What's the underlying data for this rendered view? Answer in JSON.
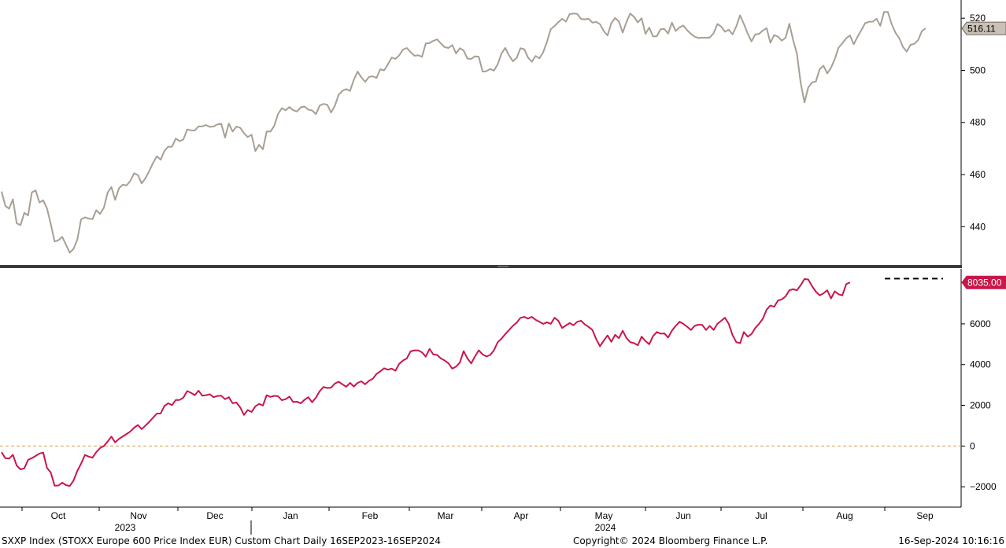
{
  "chart_data": [
    {
      "type": "line",
      "panel": "top",
      "series": [
        {
          "color": "#a89f94",
          "values": [
            453.5,
            448,
            446.9,
            450.5,
            441.3,
            440.6,
            445.3,
            444.3,
            453.2,
            453.9,
            449.3,
            450.1,
            447,
            441,
            434.3,
            434.8,
            436.1,
            433.1,
            430,
            431.5,
            435,
            442.8,
            443.6,
            443.1,
            442.9,
            446.3,
            444.9,
            447.2,
            453,
            455.2,
            450.3,
            454.8,
            456.1,
            455.8,
            457.6,
            460.5,
            459.8,
            456.6,
            458.6,
            461.4,
            464.5,
            467,
            465.7,
            469.1,
            470.7,
            470.7,
            473.8,
            472.8,
            473.5,
            477.3,
            477,
            476.9,
            478.5,
            478.5,
            479,
            478.3,
            478.5,
            479.3,
            479.5,
            474.2,
            479.6,
            476.5,
            478.4,
            478,
            475.9,
            474.4,
            475.3,
            469,
            471.4,
            469.7,
            476.5,
            476.5,
            478.7,
            483.2,
            485.5,
            484.7,
            485.9,
            484.7,
            484.2,
            485.8,
            486.1,
            484.9,
            484.6,
            483.2,
            486.5,
            487.1,
            486.8,
            483.8,
            486.4,
            490.6,
            492.1,
            492.8,
            492.1,
            496.4,
            499.5,
            497.3,
            495.6,
            497.5,
            497.7,
            497.1,
            500.4,
            500,
            502.3,
            504.9,
            504.4,
            505.8,
            508,
            508.6,
            507,
            505.6,
            505.8,
            505.2,
            510.3,
            510.5,
            511.3,
            511.9,
            510.3,
            508.9,
            508.6,
            509.7,
            506.5,
            508.5,
            507.6,
            504.5,
            504.4,
            505.4,
            505.2,
            499.5,
            499.7,
            500.5,
            499.9,
            502.3,
            506.5,
            508.6,
            505.7,
            503.5,
            504.8,
            508.5,
            508.1,
            504.9,
            503.3,
            505.5,
            504.6,
            506.9,
            511,
            515.8,
            517,
            518.5,
            519.8,
            518.7,
            521.6,
            521.8,
            521.7,
            519.7,
            519.6,
            519.8,
            518.3,
            518.6,
            517.7,
            515.1,
            513.4,
            518.1,
            520.1,
            518.7,
            514.5,
            518.6,
            521.8,
            520.5,
            518.4,
            520,
            514,
            516.4,
            513,
            513.1,
            515.8,
            515.9,
            514.1,
            518.3,
            515.1,
            516.5,
            517.2,
            515.4,
            514,
            512.9,
            512.4,
            512.5,
            512.5,
            512.6,
            514.3,
            517.8,
            516.8,
            514.8,
            515.6,
            513.8,
            516.9,
            521.1,
            517.8,
            514.1,
            511.1,
            513.8,
            514,
            515.3,
            516.2,
            510.6,
            513.5,
            512.9,
            511.4,
            512.5,
            517.9,
            511.6,
            506.4,
            495.1,
            487.7,
            493.4,
            495.4,
            495.7,
            500.4,
            501.8,
            498.8,
            501,
            504.3,
            508.7,
            510.4,
            512.3,
            513.4,
            510,
            512.9,
            515.4,
            518.1,
            518.6,
            518.7,
            519.8,
            517.1,
            522.4,
            522.4,
            517.8,
            514.5,
            512.4,
            509,
            507.2,
            509.8,
            510.2,
            511.6,
            515.1,
            516.1
          ]
        }
      ],
      "ylim": [
        425,
        527
      ],
      "yticks": [
        "440",
        "460",
        "480",
        "500",
        "520"
      ],
      "ytick_values": [
        440,
        460,
        480,
        500,
        520
      ],
      "last_value_label": "516.11",
      "last_value": 516.11,
      "label_bg": "#c9c1b6",
      "grid": false
    },
    {
      "type": "line",
      "panel": "bottom",
      "series": [
        {
          "color": "#c8174a",
          "values": [
            -304,
            -600,
            -615,
            -427,
            -961,
            -1146,
            -1095,
            -680,
            -596,
            -485,
            -366,
            -324,
            -1072,
            -1300,
            -1950,
            -1940,
            -1800,
            -1918,
            -1961,
            -1700,
            -1224,
            -869,
            -437,
            -520,
            -570,
            -300,
            -99,
            0,
            216,
            463,
            179,
            350,
            470,
            592,
            716,
            900,
            1030,
            830,
            1004,
            1187,
            1395,
            1595,
            1600,
            1970,
            2100,
            2010,
            2260,
            2263,
            2380,
            2700,
            2614,
            2500,
            2720,
            2470,
            2500,
            2541,
            2400,
            2460,
            2470,
            2300,
            2400,
            2100,
            2140,
            1900,
            1530,
            1770,
            1673,
            1950,
            2070,
            1990,
            2500,
            2415,
            2465,
            2450,
            2250,
            2300,
            2430,
            2160,
            2180,
            2100,
            2270,
            2400,
            2150,
            2380,
            2700,
            2900,
            2850,
            2870,
            3070,
            3158,
            3030,
            2910,
            3100,
            2925,
            3100,
            3180,
            3030,
            3200,
            3300,
            3540,
            3670,
            3820,
            3750,
            3800,
            3700,
            4040,
            4200,
            4300,
            4650,
            4700,
            4700,
            4600,
            4390,
            4770,
            4500,
            4470,
            4300,
            4200,
            4060,
            3800,
            3900,
            4100,
            4660,
            4300,
            4060,
            4400,
            4700,
            4500,
            4400,
            4470,
            4700,
            5100,
            5270,
            5500,
            5700,
            5900,
            6060,
            6300,
            6340,
            6260,
            6340,
            6200,
            6100,
            6000,
            6080,
            6000,
            6300,
            6150,
            5800,
            5920,
            6040,
            5930,
            6100,
            6150,
            5970,
            5850,
            5700,
            5250,
            4900,
            5180,
            5430,
            5120,
            5460,
            5300,
            5660,
            5300,
            5100,
            5050,
            4950,
            5370,
            5150,
            5000,
            5400,
            5600,
            5520,
            5530,
            5330,
            5670,
            5900,
            6100,
            6000,
            5860,
            5700,
            5900,
            5960,
            5950,
            5700,
            5900,
            5700,
            6000,
            6150,
            6300,
            6000,
            5450,
            5100,
            5050,
            5600,
            5370,
            5500,
            5800,
            6000,
            6250,
            6700,
            6900,
            6840,
            7150,
            7200,
            7350,
            7650,
            7700,
            7650,
            7900,
            8200,
            8180,
            7850,
            7580,
            7400,
            7500,
            7650,
            7250,
            7600,
            7450,
            7400,
            7950,
            8035
          ]
        }
      ],
      "ylim": [
        -3000,
        8700
      ],
      "yticks": [
        "−2000",
        "0",
        "2000",
        "4000",
        "6000"
      ],
      "ytick_values": [
        -2000,
        0,
        2000,
        4000,
        6000
      ],
      "last_value_label": "8035.00",
      "last_value": 8035,
      "label_bg": "#c8174a",
      "zero_line_color": "#d9a05b",
      "max_marker_value": 8220,
      "grid": false
    }
  ],
  "x_axis": {
    "months": [
      "Oct",
      "Nov",
      "Dec",
      "Jan",
      "Feb",
      "Mar",
      "Apr",
      "May",
      "Jun",
      "Jul",
      "Aug",
      "Sep"
    ],
    "years": [
      "2023",
      "2024"
    ]
  },
  "footer": {
    "left": "SXXP Index (STOXX Europe 600 Price Index EUR) Custom Chart  Daily 16SEP2023-16SEP2024",
    "center": "Copyright© 2024 Bloomberg Finance L.P.",
    "right": "16-Sep-2024 10:16:16"
  }
}
